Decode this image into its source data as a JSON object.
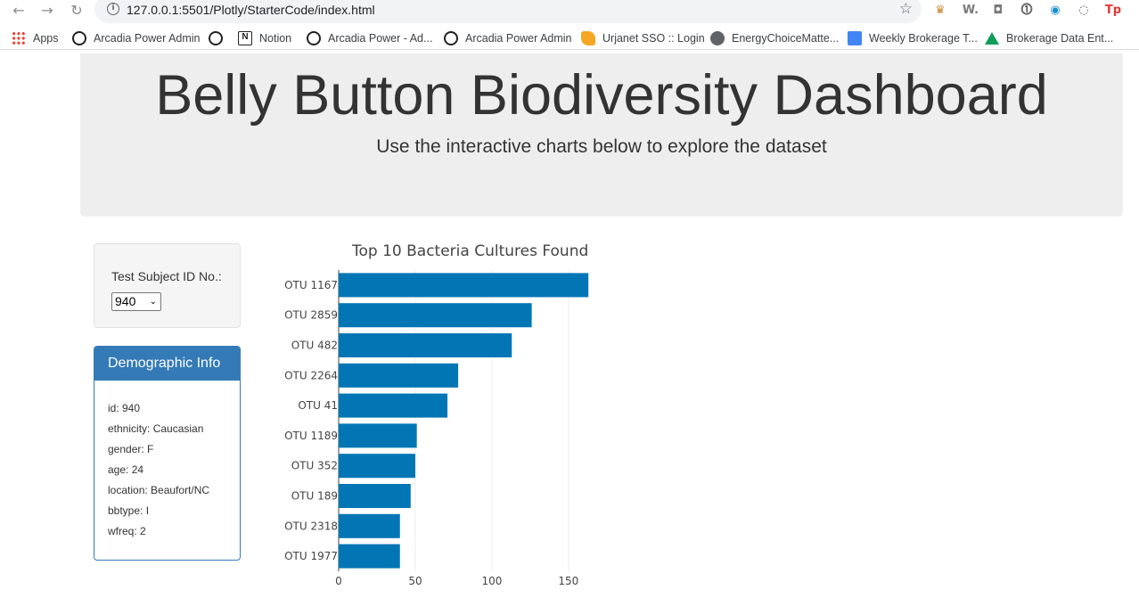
{
  "browser": {
    "url": "127.0.0.1:5501/Plotly/StarterCode/index.html",
    "bookmarks": [
      "Apps",
      "Arcadia Power Admin",
      "",
      "Notion",
      "Arcadia Power - Ad...",
      "Arcadia Power Admin",
      "Urjanet SSO :: Login",
      "EnergyChoiceMatte...",
      "Weekly Brokerage T...",
      "Brokerage Data Ent..."
    ],
    "ext_labels": [
      "W.",
      "Tp"
    ]
  },
  "header": {
    "title": "Belly Button Biodiversity Dashboard",
    "subtitle": "Use the interactive charts below to explore the dataset"
  },
  "selector": {
    "label": "Test Subject ID No.:",
    "selected": "940"
  },
  "demographics": {
    "heading": "Demographic Info",
    "lines": [
      "id: 940",
      "ethnicity: Caucasian",
      "gender: F",
      "age: 24",
      "location: Beaufort/NC",
      "bbtype: I",
      "wfreq: 2"
    ]
  },
  "chart_data": {
    "type": "bar",
    "orientation": "horizontal",
    "title": "Top 10 Bacteria Cultures Found",
    "categories": [
      "OTU 1167",
      "OTU 2859",
      "OTU 482",
      "OTU 2264",
      "OTU 41",
      "OTU 1189",
      "OTU 352",
      "OTU 189",
      "OTU 2318",
      "OTU 1977"
    ],
    "values": [
      163,
      126,
      113,
      78,
      71,
      51,
      50,
      47,
      40,
      40
    ],
    "xticks": [
      0,
      50,
      100,
      150
    ],
    "xlim": [
      0,
      171.6
    ],
    "bar_color": "#0276b5",
    "grid": true
  }
}
